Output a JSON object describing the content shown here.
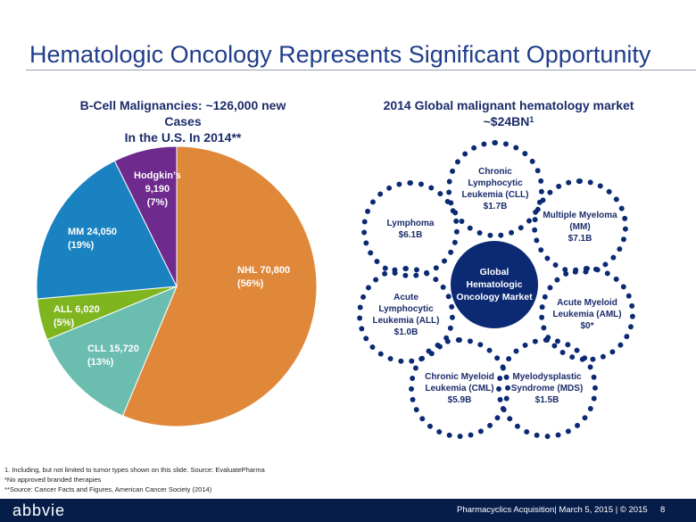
{
  "title": "Hematologic Oncology Represents Significant Opportunity",
  "left_subtitle": {
    "line1": "B-Cell Malignancies: ~126,000 new Cases",
    "line2": "In the U.S. In 2014**"
  },
  "right_subtitle": {
    "line1": "2014 Global malignant hematology market",
    "line2": "~$24BN",
    "sup": "1"
  },
  "chart_data": {
    "type": "pie",
    "title": "B-Cell Malignancies: ~126,000 new Cases In the U.S. In 2014**",
    "slices": [
      {
        "name": "NHL",
        "value": 70800,
        "value_label": "70,800",
        "percent": "(56%)",
        "color": "#e0883a"
      },
      {
        "name": "CLL",
        "value": 15720,
        "value_label": "15,720",
        "percent": "(13%)",
        "color": "#6bbdb0"
      },
      {
        "name": "ALL",
        "value": 6020,
        "value_label": "6,020",
        "percent": "(5%)",
        "color": "#7fb51f"
      },
      {
        "name": "MM",
        "value": 24050,
        "value_label": "24,050",
        "percent": "(19%)",
        "color": "#1a82c0"
      },
      {
        "name": "Hodgkin’s",
        "value": 9190,
        "value_label": "9,190",
        "percent": "(7%)",
        "color": "#6e2a8c"
      }
    ]
  },
  "pie_labels": {
    "nhl": {
      "line1": "NHL 70,800",
      "line2": "(56%)"
    },
    "cll": {
      "line1": "CLL 15,720",
      "line2": "(13%)"
    },
    "all": {
      "line1": "ALL 6,020",
      "line2": "(5%)"
    },
    "mm": {
      "line1": "MM 24,050",
      "line2": "(19%)"
    },
    "hodgkin": {
      "line1": "Hodgkin’s",
      "line2": "9,190",
      "line3": "(7%)"
    }
  },
  "market": {
    "center": {
      "line1": "Global Hematologic",
      "line2": "Oncology Market"
    },
    "cll": {
      "l1": "Chronic",
      "l2": "Lymphocytic",
      "l3": "Leukemia (CLL)",
      "l4": "$1.7B"
    },
    "lymphoma": {
      "l1": "Lymphoma",
      "l2": "$6.1B"
    },
    "mm": {
      "l1": "Multiple Myeloma",
      "l2": "(MM)",
      "l3": "$7.1B"
    },
    "all": {
      "l1": "Acute",
      "l2": "Lymphocytic",
      "l3": "Leukemia (ALL)",
      "l4": "$1.0B"
    },
    "aml": {
      "l1": "Acute Myeloid",
      "l2": "Leukemia (AML)",
      "l3": "$0*"
    },
    "cml": {
      "l1": "Chronic Myeloid",
      "l2": "Leukemia (CML)",
      "l3": "$5.9B"
    },
    "mds": {
      "l1": "Myelodysplastic",
      "l2": "Syndrome (MDS)",
      "l3": "$1.5B"
    }
  },
  "footnotes": [
    "1. Including, but not limited to tumor types shown on this slide. Source: EvaluatePharma",
    "*No approved branded therapies",
    "**Source:  Cancer Facts and Figures, American Cancer Society (2014)"
  ],
  "footer": {
    "logo": "abbvie",
    "text": "Pharmacyclics Acquisition| March 5, 2015 | © 2015",
    "page": "8"
  }
}
